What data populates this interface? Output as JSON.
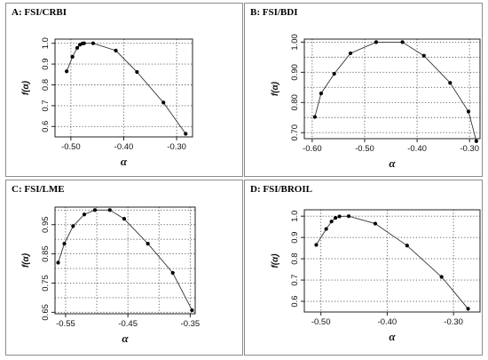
{
  "chart_data": [
    {
      "panel": "A: FSI/CRBI",
      "type": "line",
      "xlabel": "α",
      "ylabel": "f(α)",
      "xlim": [
        -0.53,
        -0.27
      ],
      "ylim": [
        0.55,
        1.02
      ],
      "xticks": [
        -0.5,
        -0.4,
        -0.3
      ],
      "xtick_labels": [
        "-0.50",
        "-0.40",
        "-0.30"
      ],
      "yticks": [
        0.6,
        0.7,
        0.8,
        0.9,
        1.0
      ],
      "ytick_labels": [
        "0.6",
        "0.7",
        "0.8",
        "0.9",
        "1.0"
      ],
      "grid": true,
      "x": [
        -0.508,
        -0.497,
        -0.488,
        -0.483,
        -0.478,
        -0.475,
        -0.458,
        -0.415,
        -0.375,
        -0.325,
        -0.283
      ],
      "y": [
        0.865,
        0.935,
        0.978,
        0.993,
        0.999,
        1.0,
        1.0,
        0.965,
        0.862,
        0.715,
        0.565
      ]
    },
    {
      "panel": "B: FSI/BDI",
      "type": "line",
      "xlabel": "α",
      "ylabel": "f(α)",
      "xlim": [
        -0.615,
        -0.28
      ],
      "ylim": [
        0.68,
        1.01
      ],
      "xticks": [
        -0.6,
        -0.5,
        -0.4,
        -0.3
      ],
      "xtick_labels": [
        "-0.60",
        "-0.50",
        "-0.40",
        "-0.30"
      ],
      "yticks": [
        0.7,
        0.8,
        0.9,
        1.0
      ],
      "ytick_labels": [
        "0.70",
        "0.80",
        "0.90",
        "1.00"
      ],
      "yticks_minor": [
        0.75,
        0.85,
        0.95
      ],
      "grid": true,
      "x": [
        -0.595,
        -0.583,
        -0.558,
        -0.527,
        -0.478,
        -0.428,
        -0.387,
        -0.337,
        -0.302,
        -0.287
      ],
      "y": [
        0.752,
        0.83,
        0.895,
        0.963,
        1.0,
        1.0,
        0.955,
        0.865,
        0.77,
        0.672
      ]
    },
    {
      "panel": "C: FSI/LME",
      "type": "line",
      "xlabel": "α",
      "ylabel": "f(α)",
      "xlim": [
        -0.567,
        -0.342
      ],
      "ylim": [
        0.645,
        1.01
      ],
      "xticks": [
        -0.55,
        -0.45,
        -0.35
      ],
      "xtick_labels": [
        "-0.55",
        "-0.45",
        "-0.35"
      ],
      "xticks_minor": [
        -0.5,
        -0.4
      ],
      "yticks": [
        0.65,
        0.75,
        0.85,
        0.95
      ],
      "ytick_labels": [
        "0.65",
        "0.75",
        "0.85",
        "0.95"
      ],
      "yticks_minor": [
        0.7,
        0.8,
        0.9,
        1.0
      ],
      "grid": true,
      "x": [
        -0.562,
        -0.552,
        -0.538,
        -0.52,
        -0.503,
        -0.479,
        -0.456,
        -0.418,
        -0.378,
        -0.347
      ],
      "y": [
        0.82,
        0.885,
        0.945,
        0.985,
        1.0,
        1.0,
        0.97,
        0.885,
        0.785,
        0.657
      ]
    },
    {
      "panel": "D: FSI/BROIL",
      "type": "line",
      "xlabel": "α",
      "ylabel": "f(α)",
      "xlim": [
        -0.525,
        -0.26
      ],
      "ylim": [
        0.55,
        1.03
      ],
      "xticks": [
        -0.5,
        -0.4,
        -0.3
      ],
      "xtick_labels": [
        "-0.50",
        "-0.40",
        "-0.30"
      ],
      "yticks": [
        0.6,
        0.7,
        0.8,
        0.9,
        1.0
      ],
      "ytick_labels": [
        "0.6",
        "0.7",
        "0.8",
        "0.9",
        "1.0"
      ],
      "grid": true,
      "x": [
        -0.507,
        -0.492,
        -0.484,
        -0.478,
        -0.472,
        -0.458,
        -0.418,
        -0.37,
        -0.318,
        -0.278
      ],
      "y": [
        0.865,
        0.94,
        0.975,
        0.992,
        0.999,
        1.0,
        0.965,
        0.862,
        0.715,
        0.565
      ]
    }
  ]
}
